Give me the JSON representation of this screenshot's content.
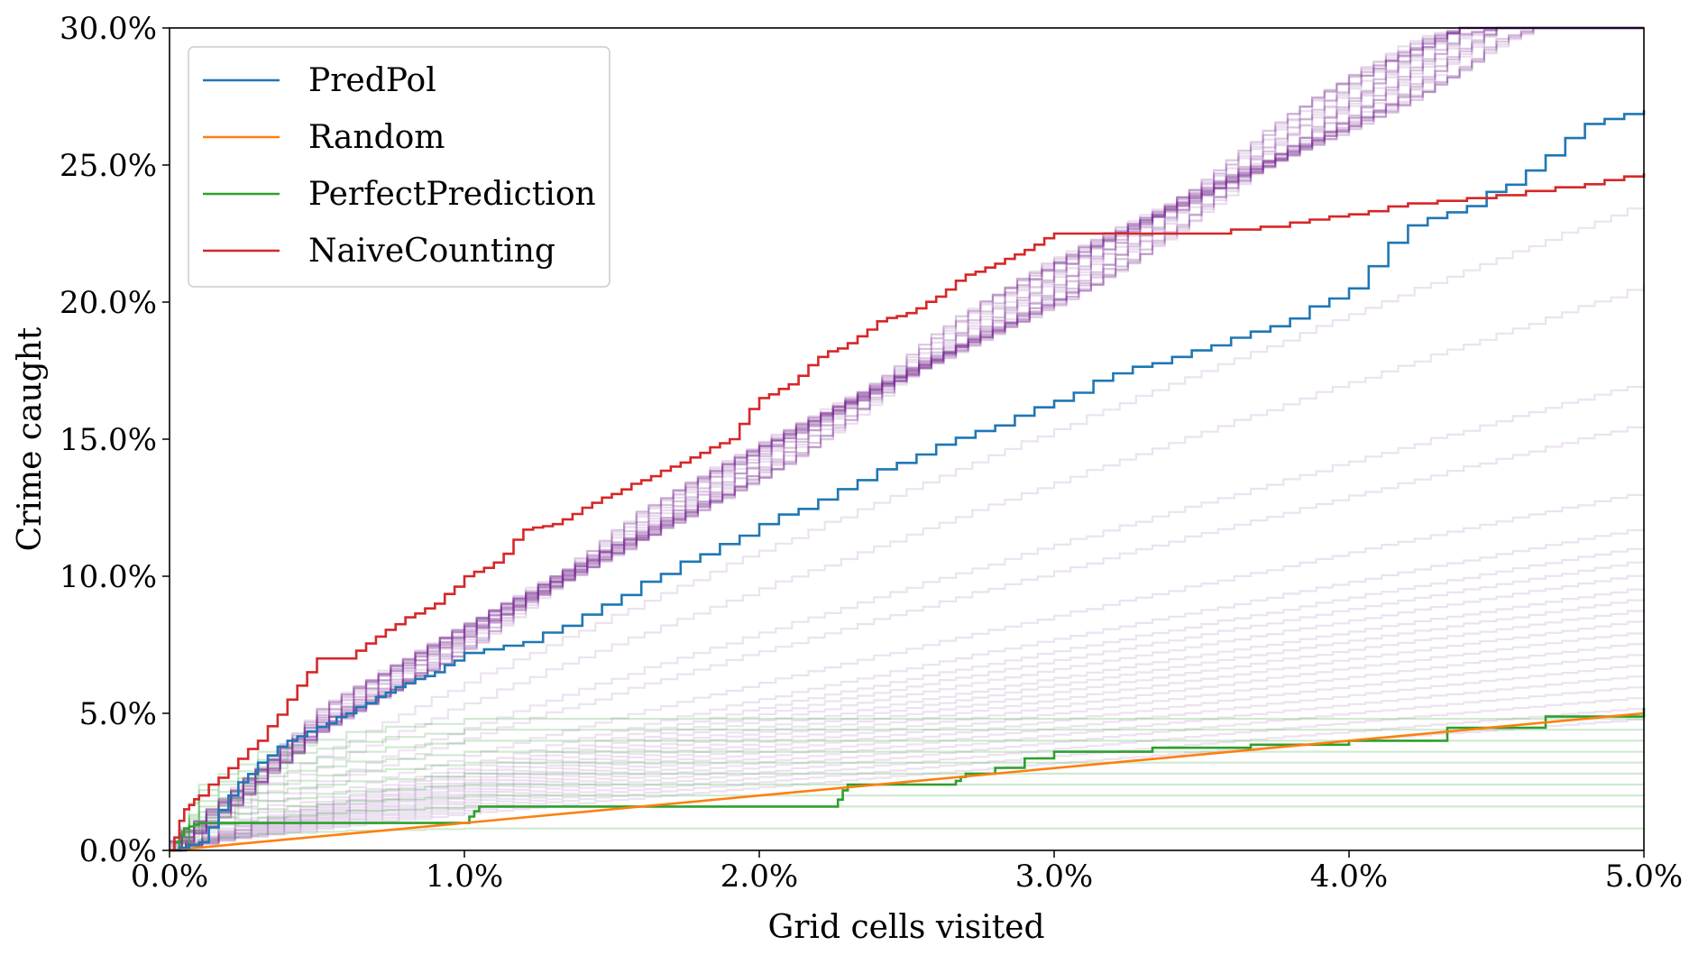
{
  "chart_data": {
    "type": "line",
    "title": "",
    "xlabel": "Grid cells visited",
    "ylabel": "Crime caught",
    "xlim": [
      0,
      5
    ],
    "ylim": [
      0,
      30
    ],
    "x_unit": "%",
    "y_unit": "%",
    "x_ticks": [
      "0.0%",
      "1.0%",
      "2.0%",
      "3.0%",
      "4.0%",
      "5.0%"
    ],
    "y_ticks": [
      "0.0%",
      "5.0%",
      "10.0%",
      "15.0%",
      "20.0%",
      "25.0%",
      "30.0%"
    ],
    "grid": false,
    "legend_position": "top-left",
    "series": [
      {
        "name": "PredPol",
        "color": "#1f77b4",
        "x": [
          0,
          0.1,
          0.2,
          0.3,
          0.4,
          0.5,
          0.6,
          0.7,
          0.8,
          0.9,
          1.0,
          1.2,
          1.4,
          1.6,
          1.8,
          2.0,
          2.2,
          2.4,
          2.6,
          2.8,
          3.0,
          3.2,
          3.4,
          3.6,
          3.8,
          4.0,
          4.2,
          4.4,
          4.6,
          4.8,
          5.0
        ],
        "y": [
          0,
          0.3,
          2.0,
          3.2,
          4.0,
          4.5,
          5.0,
          5.6,
          6.1,
          6.5,
          7.2,
          7.6,
          8.6,
          9.8,
          10.8,
          11.9,
          12.8,
          13.9,
          14.8,
          15.5,
          16.4,
          17.4,
          18.0,
          18.7,
          19.4,
          20.5,
          22.8,
          23.5,
          24.8,
          26.5,
          27.0
        ]
      },
      {
        "name": "Random",
        "color": "#ff7f0e",
        "x": [
          0,
          5
        ],
        "y": [
          0,
          5.0
        ]
      },
      {
        "name": "PerfectPrediction",
        "color": "#2ca02c",
        "x": [
          0,
          0.05,
          0.1,
          1.0,
          1.05,
          2.25,
          2.3,
          2.65,
          2.7,
          3.0,
          4.0,
          5.0
        ],
        "y": [
          0,
          0.8,
          1.0,
          1.0,
          1.6,
          1.6,
          2.4,
          2.4,
          2.8,
          3.6,
          4.0,
          5.2
        ]
      },
      {
        "name": "NaiveCounting",
        "color": "#d62728",
        "x": [
          0,
          0.05,
          0.1,
          0.2,
          0.3,
          0.4,
          0.5,
          0.6,
          0.7,
          0.8,
          0.9,
          1.0,
          1.1,
          1.2,
          1.3,
          1.4,
          1.5,
          1.6,
          1.7,
          1.8,
          1.9,
          2.0,
          2.1,
          2.2,
          2.3,
          2.4,
          2.5,
          2.6,
          2.7,
          2.8,
          2.9,
          3.0,
          3.2,
          3.5,
          3.8,
          4.0,
          4.2,
          4.5,
          4.8,
          5.0
        ],
        "y": [
          0,
          1.5,
          2.0,
          3.0,
          4.0,
          5.5,
          7.0,
          7.0,
          7.8,
          8.5,
          9.0,
          10.0,
          10.5,
          11.7,
          11.9,
          12.5,
          13.0,
          13.5,
          14.0,
          14.5,
          15.0,
          16.5,
          17.0,
          18.0,
          18.5,
          19.3,
          19.6,
          20.2,
          21.0,
          21.4,
          21.9,
          22.5,
          22.5,
          22.5,
          22.9,
          23.2,
          23.6,
          23.9,
          24.3,
          24.7
        ]
      }
    ]
  }
}
